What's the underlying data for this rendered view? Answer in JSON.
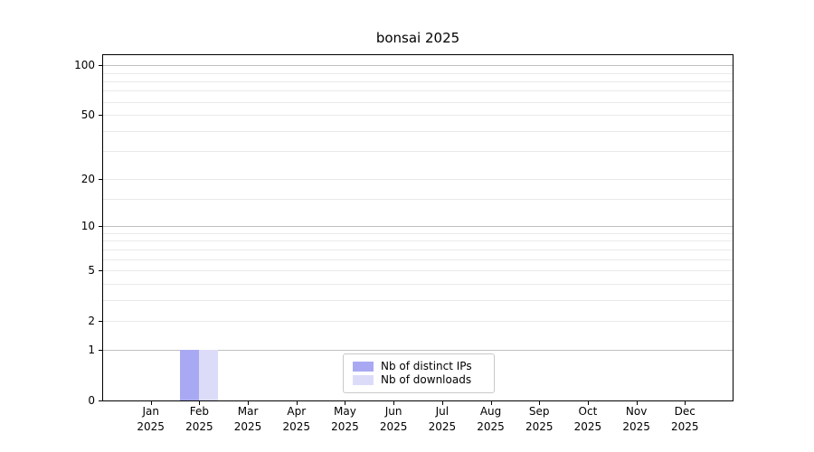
{
  "chart_data": {
    "type": "bar",
    "title": "bonsai 2025",
    "months": [
      "Jan",
      "Feb",
      "Mar",
      "Apr",
      "May",
      "Jun",
      "Jul",
      "Aug",
      "Sep",
      "Oct",
      "Nov",
      "Dec"
    ],
    "year": "2025",
    "series": [
      {
        "name": "Nb of distinct IPs",
        "color": "#a9a9f3",
        "values": [
          0,
          1,
          0,
          0,
          0,
          0,
          0,
          0,
          0,
          0,
          0,
          0
        ]
      },
      {
        "name": "Nb of downloads",
        "color": "#dcdcf9",
        "values": [
          0,
          1,
          0,
          0,
          0,
          0,
          0,
          0,
          0,
          0,
          0,
          0
        ]
      }
    ],
    "yscale": "log1p",
    "ylim": [
      0,
      115
    ],
    "yticks": [
      0,
      1,
      2,
      5,
      10,
      20,
      50,
      100
    ],
    "ytick_labels": [
      "0",
      "1",
      "2",
      "5",
      "10",
      "20",
      "50",
      "100"
    ],
    "major_grid_values": [
      1,
      10,
      100
    ],
    "minor_grid_values": [
      2,
      3,
      4,
      5,
      6,
      7,
      8,
      9,
      15,
      20,
      30,
      40,
      50,
      60,
      70,
      80,
      90
    ],
    "grid": "horizontal",
    "legend_position": "lower center",
    "colors": {
      "background": "#ffffff",
      "axis": "#000000",
      "major_grid": "#c0c0c0",
      "minor_grid": "#e9e9e9",
      "text": "#000000"
    }
  }
}
